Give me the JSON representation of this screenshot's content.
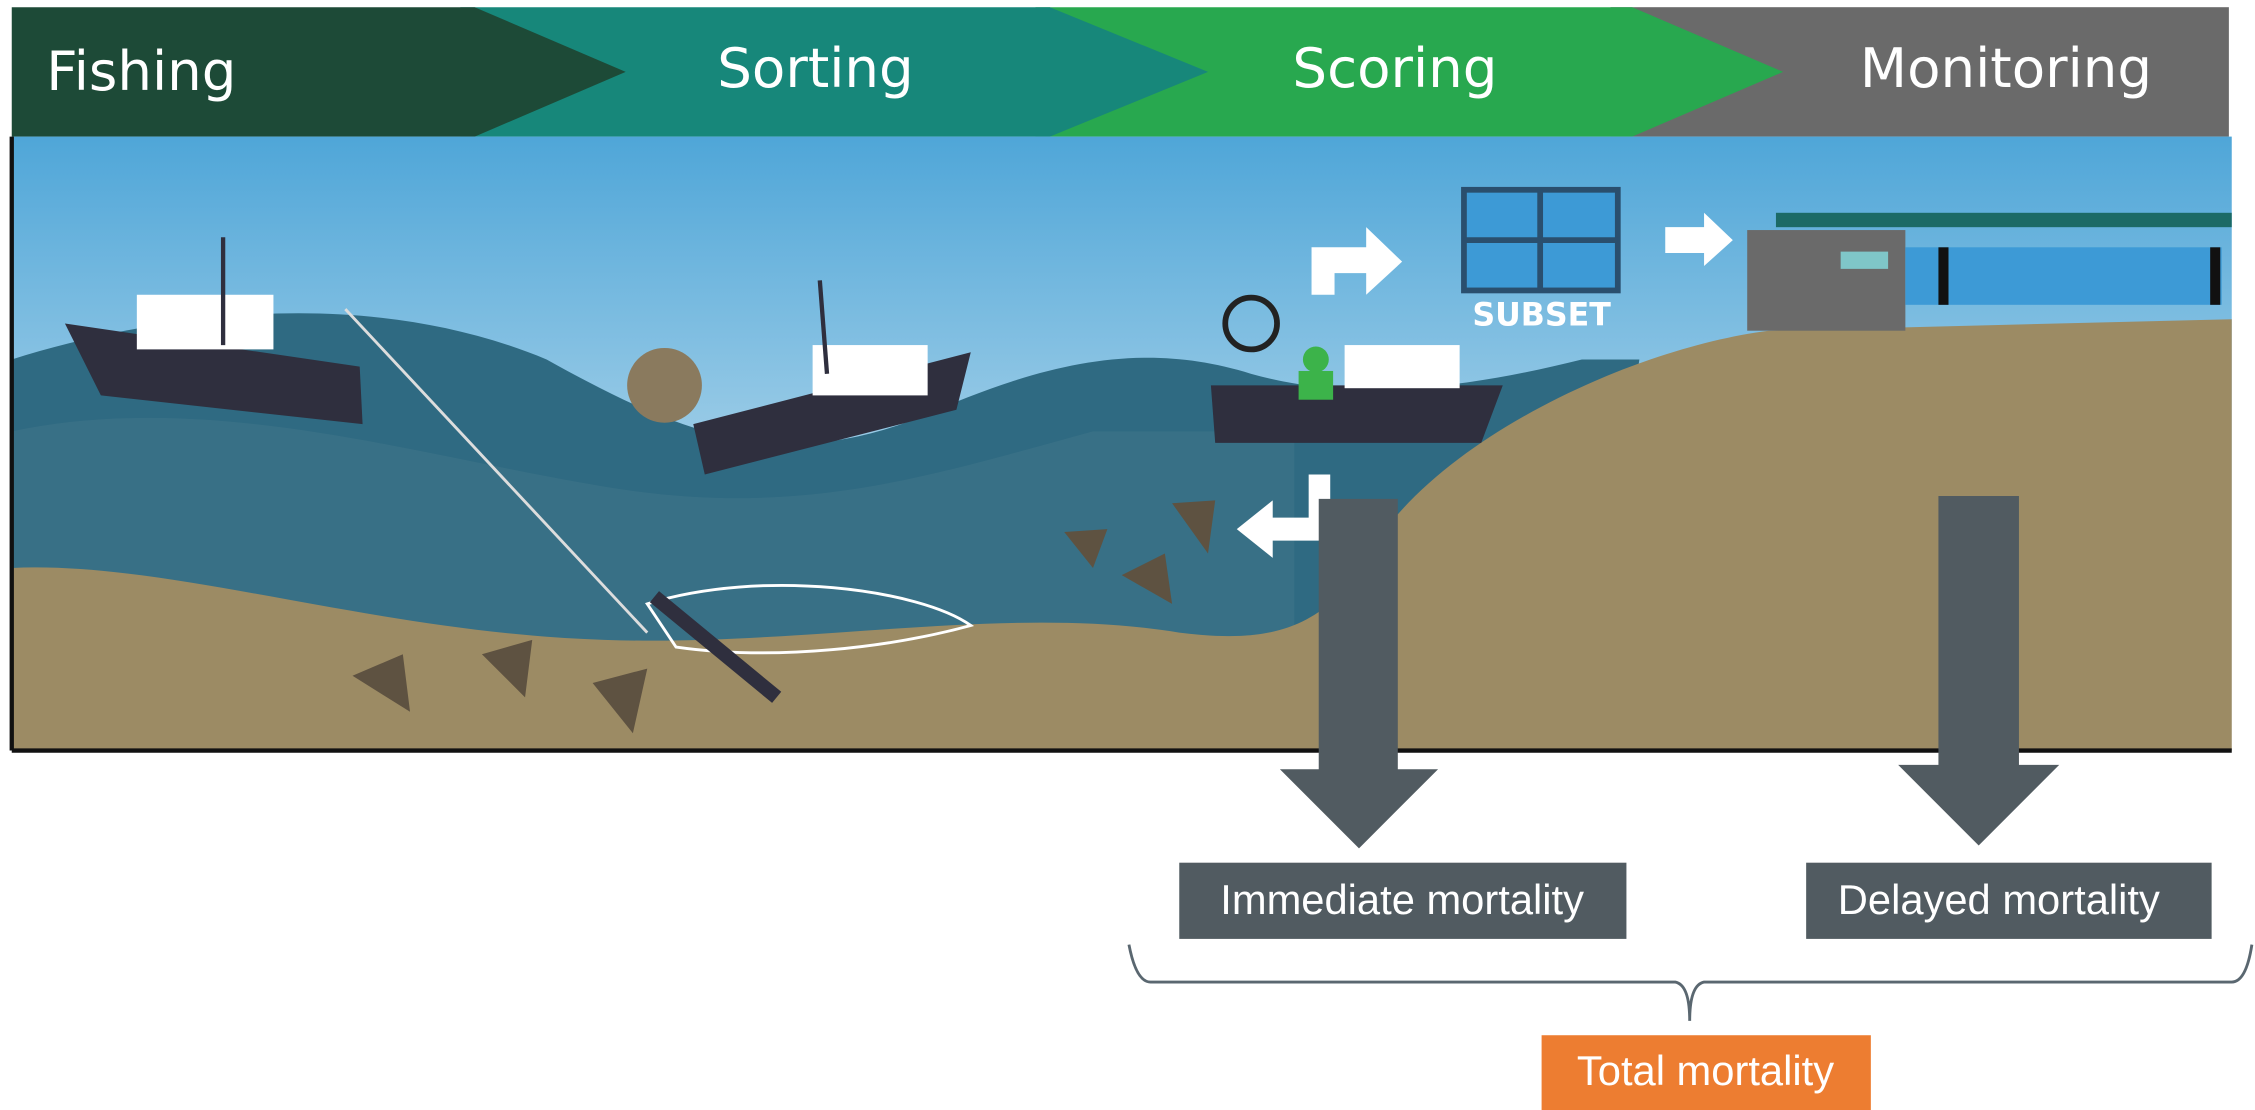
{
  "stages": [
    "Fishing",
    "Sorting",
    "Scoring",
    "Monitoring"
  ],
  "illustration": {
    "label": "SUBSET"
  },
  "outcomes": [
    "Immediate mortality",
    "Delayed mortality"
  ],
  "total": "Total mortality"
}
